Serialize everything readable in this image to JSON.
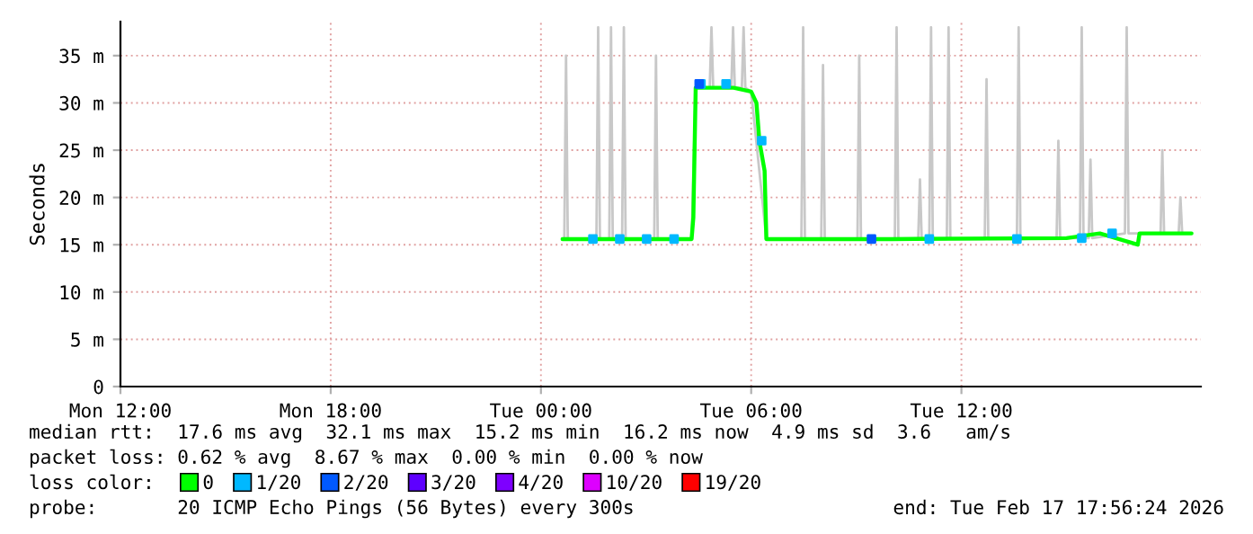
{
  "chart_data": {
    "type": "line",
    "ylabel": "Seconds",
    "legend_title": "loss color:",
    "legend": "bottom",
    "grid": true,
    "xlim": [
      "2026-02-16T12:00",
      "2026-02-17T18:50"
    ],
    "xticks": [
      {
        "value": "2026-02-16T12:00",
        "label": "Mon 12:00"
      },
      {
        "value": "2026-02-16T18:00",
        "label": "Mon 18:00"
      },
      {
        "value": "2026-02-17T00:00",
        "label": "Tue 00:00"
      },
      {
        "value": "2026-02-17T06:00",
        "label": "Tue 06:00"
      },
      {
        "value": "2026-02-17T12:00",
        "label": "Tue 12:00"
      }
    ],
    "ylim": [
      0,
      38.6
    ],
    "yticks": [
      0,
      {
        "value": 5,
        "label": "5 m"
      },
      {
        "value": 10,
        "label": "10 m"
      },
      {
        "value": 15,
        "label": "15 m"
      },
      {
        "value": 20,
        "label": "20 m"
      },
      {
        "value": 25,
        "label": "25 m"
      },
      {
        "value": 30,
        "label": "30 m"
      },
      {
        "value": 35,
        "label": "35 m"
      }
    ],
    "series": [
      {
        "color": "#c8c8c8",
        "x": [
          "2026-02-17T00:40",
          "2026-02-17T00:43",
          "2026-02-17T00:46",
          "2026-02-17T01:35",
          "2026-02-17T01:38",
          "2026-02-17T01:41",
          "2026-02-17T01:57",
          "2026-02-17T02:00",
          "2026-02-17T02:03",
          "2026-02-17T02:19",
          "2026-02-17T02:22",
          "2026-02-17T02:25",
          "2026-02-17T03:14",
          "2026-02-17T03:17",
          "2026-02-17T03:20",
          "2026-02-17T04:18",
          "2026-02-17T04:25",
          "2026-02-17T04:49",
          "2026-02-17T04:52",
          "2026-02-17T04:55",
          "2026-02-17T05:26",
          "2026-02-17T05:29",
          "2026-02-17T05:32",
          "2026-02-17T05:44",
          "2026-02-17T05:47",
          "2026-02-17T05:50",
          "2026-02-17T06:00",
          "2026-02-17T06:26",
          "2026-02-17T07:26",
          "2026-02-17T07:29",
          "2026-02-17T07:32",
          "2026-02-17T08:00",
          "2026-02-17T08:03",
          "2026-02-17T08:06",
          "2026-02-17T09:02",
          "2026-02-17T09:05",
          "2026-02-17T09:08",
          "2026-02-17T10:06",
          "2026-02-17T10:09",
          "2026-02-17T10:12",
          "2026-02-17T10:46",
          "2026-02-17T10:49",
          "2026-02-17T10:52",
          "2026-02-17T11:05",
          "2026-02-17T11:08",
          "2026-02-17T11:11",
          "2026-02-17T11:35",
          "2026-02-17T11:38",
          "2026-02-17T11:41",
          "2026-02-17T12:40",
          "2026-02-17T12:43",
          "2026-02-17T12:46",
          "2026-02-17T13:35",
          "2026-02-17T13:38",
          "2026-02-17T13:41",
          "2026-02-17T14:43",
          "2026-02-17T14:46",
          "2026-02-17T14:49",
          "2026-02-17T15:23",
          "2026-02-17T15:26",
          "2026-02-17T15:29",
          "2026-02-17T15:38",
          "2026-02-17T15:41",
          "2026-02-17T15:44",
          "2026-02-17T16:40",
          "2026-02-17T16:43",
          "2026-02-17T16:46",
          "2026-02-17T17:41",
          "2026-02-17T17:44",
          "2026-02-17T17:47",
          "2026-02-17T18:12",
          "2026-02-17T18:15",
          "2026-02-17T18:18"
        ],
        "values": [
          15.6,
          35,
          15.6,
          15.6,
          38,
          15.6,
          15.6,
          38,
          15.6,
          15.6,
          38,
          15.6,
          15.6,
          35,
          15.6,
          15.6,
          31.6,
          31.6,
          38,
          31.6,
          31.6,
          38,
          31.6,
          31.6,
          38,
          31.6,
          31.2,
          15.6,
          15.6,
          38,
          15.6,
          15.6,
          34,
          15.6,
          15.6,
          35,
          15.6,
          15.6,
          38,
          15.6,
          15.6,
          21.9,
          15.6,
          15.6,
          38,
          15.6,
          15.6,
          38,
          15.6,
          15.6,
          32.5,
          15.6,
          15.6,
          38,
          15.6,
          15.7,
          26,
          15.7,
          15.7,
          38,
          15.7,
          15.7,
          24,
          15.7,
          16.2,
          38,
          16.2,
          16.2,
          25,
          16.2,
          16.2,
          20,
          16.2
        ]
      },
      {
        "name": "0",
        "color": "#00ff00",
        "x": [
          "2026-02-17T00:37",
          "2026-02-17T04:18",
          "2026-02-17T04:21",
          "2026-02-17T04:25",
          "2026-02-17T05:30",
          "2026-02-17T06:00",
          "2026-02-17T06:09",
          "2026-02-17T06:14",
          "2026-02-17T06:23",
          "2026-02-17T06:26",
          "2026-02-17T10:00",
          "2026-02-17T15:00",
          "2026-02-17T15:57",
          "2026-02-17T17:02",
          "2026-02-17T17:05",
          "2026-02-17T18:34"
        ],
        "values": [
          15.6,
          15.6,
          17.9,
          31.6,
          31.6,
          31.2,
          30,
          26,
          22.8,
          15.6,
          15.6,
          15.7,
          16.2,
          15,
          16.2,
          16.2
        ]
      },
      {
        "type": "scatter",
        "name": "1/20",
        "color": "#00b8ff",
        "x": [
          "2026-02-17T01:29",
          "2026-02-17T02:15",
          "2026-02-17T03:01",
          "2026-02-17T03:48",
          "2026-02-17T04:34",
          "2026-02-17T05:17",
          "2026-02-17T06:18",
          "2026-02-17T11:05",
          "2026-02-17T13:35",
          "2026-02-17T15:26",
          "2026-02-17T16:18"
        ],
        "values": [
          15.6,
          15.6,
          15.6,
          15.6,
          32,
          32,
          26,
          15.6,
          15.6,
          15.7,
          16.2
        ]
      },
      {
        "type": "scatter",
        "name": "2/20",
        "color": "#0059ff",
        "x": [
          "2026-02-17T04:31",
          "2026-02-17T09:26"
        ],
        "values": [
          32,
          15.6
        ]
      },
      {
        "type": "scatter",
        "name": "3/20",
        "color": "#5e00ff"
      },
      {
        "type": "scatter",
        "name": "4/20",
        "color": "#7e00ff"
      },
      {
        "type": "scatter",
        "name": "10/20",
        "color": "#dd00ff"
      },
      {
        "type": "scatter",
        "name": "19/20",
        "color": "#ff0000"
      }
    ],
    "annotations": [
      "median rtt:  17.6 ms avg  32.1 ms max  15.2 ms min  16.2 ms now  4.9 ms sd  3.6   am/s",
      "packet loss: 0.62 % avg  8.67 % max  0.00 % min  0.00 % now",
      "probe:       20 ICMP Echo Pings (56 Bytes) every 300s",
      "end: Tue Feb 17 17:56:24 2026"
    ]
  }
}
